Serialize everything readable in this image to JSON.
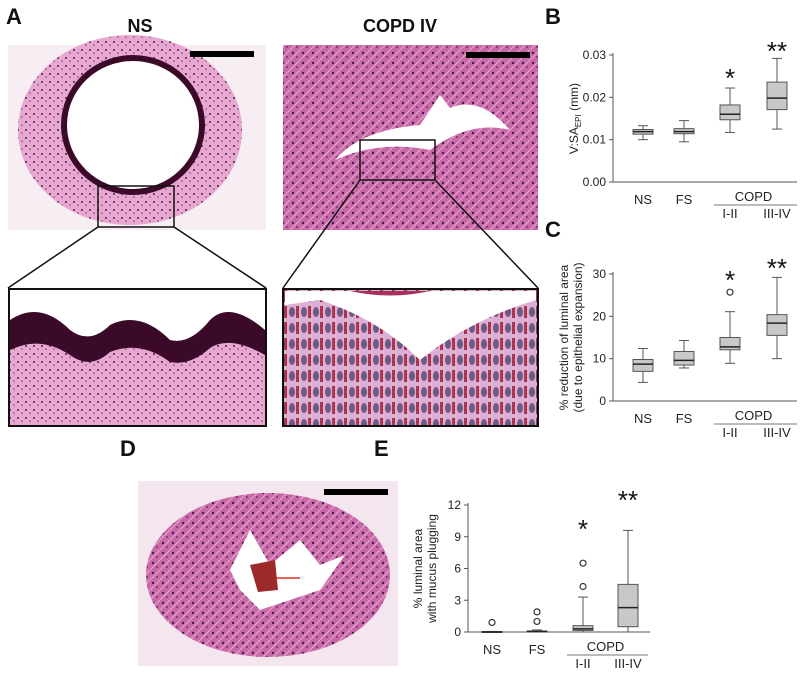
{
  "figure": {
    "panel_labels": {
      "A": "A",
      "B": "B",
      "C": "C",
      "D": "D",
      "E": "E"
    },
    "histology": {
      "ns_title": "NS",
      "copd_title": "COPD IV"
    }
  },
  "colors": {
    "box_fill": "#c8c8c8",
    "box_stroke": "#555555",
    "tissue_pink": "#d98fbf",
    "tissue_dark": "#4a1030",
    "arrow_red": "#e03020"
  },
  "chart_data": [
    {
      "panel": "B",
      "type": "box",
      "title": "",
      "xlabel": "",
      "ylabel": "V:SA EPI (mm)",
      "ylabel_main": "V:SA",
      "ylabel_sub": "EPI",
      "ylabel_unit": "(mm)",
      "ylim": [
        0,
        0.03
      ],
      "yticks": [
        "0.00",
        "0.01",
        "0.02",
        "0.03"
      ],
      "categories": [
        "NS",
        "FS",
        "I-II",
        "III-IV"
      ],
      "group_label": "COPD",
      "significance": [
        "",
        "",
        "*",
        "**"
      ],
      "boxes": [
        {
          "name": "NS",
          "min": 0.01,
          "q1": 0.0113,
          "median": 0.0119,
          "q3": 0.0124,
          "max": 0.0133,
          "outliers": []
        },
        {
          "name": "FS",
          "min": 0.0095,
          "q1": 0.0114,
          "median": 0.0119,
          "q3": 0.0126,
          "max": 0.0145,
          "outliers": []
        },
        {
          "name": "COPD I-II",
          "min": 0.0117,
          "q1": 0.0147,
          "median": 0.016,
          "q3": 0.0182,
          "max": 0.0222,
          "outliers": []
        },
        {
          "name": "COPD III-IV",
          "min": 0.0125,
          "q1": 0.0171,
          "median": 0.0198,
          "q3": 0.0236,
          "max": 0.0292,
          "outliers": []
        }
      ]
    },
    {
      "panel": "C",
      "type": "box",
      "title": "",
      "xlabel": "",
      "ylabel": "% reduction of luminal area (due to epithelial expansion)",
      "ylabel_line1": "% reduction of luminal area",
      "ylabel_line2": "(due to epithelial expansion)",
      "ylim": [
        0,
        30
      ],
      "yticks": [
        "0",
        "10",
        "20",
        "30"
      ],
      "categories": [
        "NS",
        "FS",
        "I-II",
        "III-IV"
      ],
      "group_label": "COPD",
      "significance": [
        "",
        "",
        "*",
        "**"
      ],
      "boxes": [
        {
          "name": "NS",
          "min": 4.4,
          "q1": 7.0,
          "median": 8.7,
          "q3": 9.8,
          "max": 12.4,
          "outliers": []
        },
        {
          "name": "FS",
          "min": 7.8,
          "q1": 8.5,
          "median": 9.6,
          "q3": 11.7,
          "max": 14.3,
          "outliers": []
        },
        {
          "name": "COPD I-II",
          "min": 8.9,
          "q1": 12.1,
          "median": 12.8,
          "q3": 15.0,
          "max": 21.1,
          "outliers": [
            25.7
          ]
        },
        {
          "name": "COPD III-IV",
          "min": 10.0,
          "q1": 15.5,
          "median": 18.4,
          "q3": 20.4,
          "max": 29.2,
          "outliers": []
        }
      ]
    },
    {
      "panel": "E",
      "type": "box",
      "title": "",
      "xlabel": "",
      "ylabel": "% luminal area with mucus plugging",
      "ylabel_line1": "% luminal area",
      "ylabel_line2": "with mucus plugging",
      "ylim": [
        0,
        12
      ],
      "yticks": [
        "0",
        "3",
        "6",
        "9",
        "12"
      ],
      "categories": [
        "NS",
        "FS",
        "I-II",
        "III-IV"
      ],
      "group_label": "COPD",
      "significance": [
        "",
        "",
        "*",
        "**"
      ],
      "boxes": [
        {
          "name": "NS",
          "min": 0,
          "q1": 0,
          "median": 0,
          "q3": 0.05,
          "max": 0.05,
          "outliers": [
            0.9
          ]
        },
        {
          "name": "FS",
          "min": 0,
          "q1": 0,
          "median": 0.05,
          "q3": 0.1,
          "max": 0.2,
          "outliers": [
            1.0,
            1.9
          ]
        },
        {
          "name": "COPD I-II",
          "min": 0,
          "q1": 0.15,
          "median": 0.3,
          "q3": 0.6,
          "max": 3.3,
          "outliers": [
            4.3,
            6.5
          ]
        },
        {
          "name": "COPD III-IV",
          "min": 0,
          "q1": 0.5,
          "median": 2.3,
          "q3": 4.5,
          "max": 9.6,
          "outliers": []
        }
      ]
    }
  ]
}
